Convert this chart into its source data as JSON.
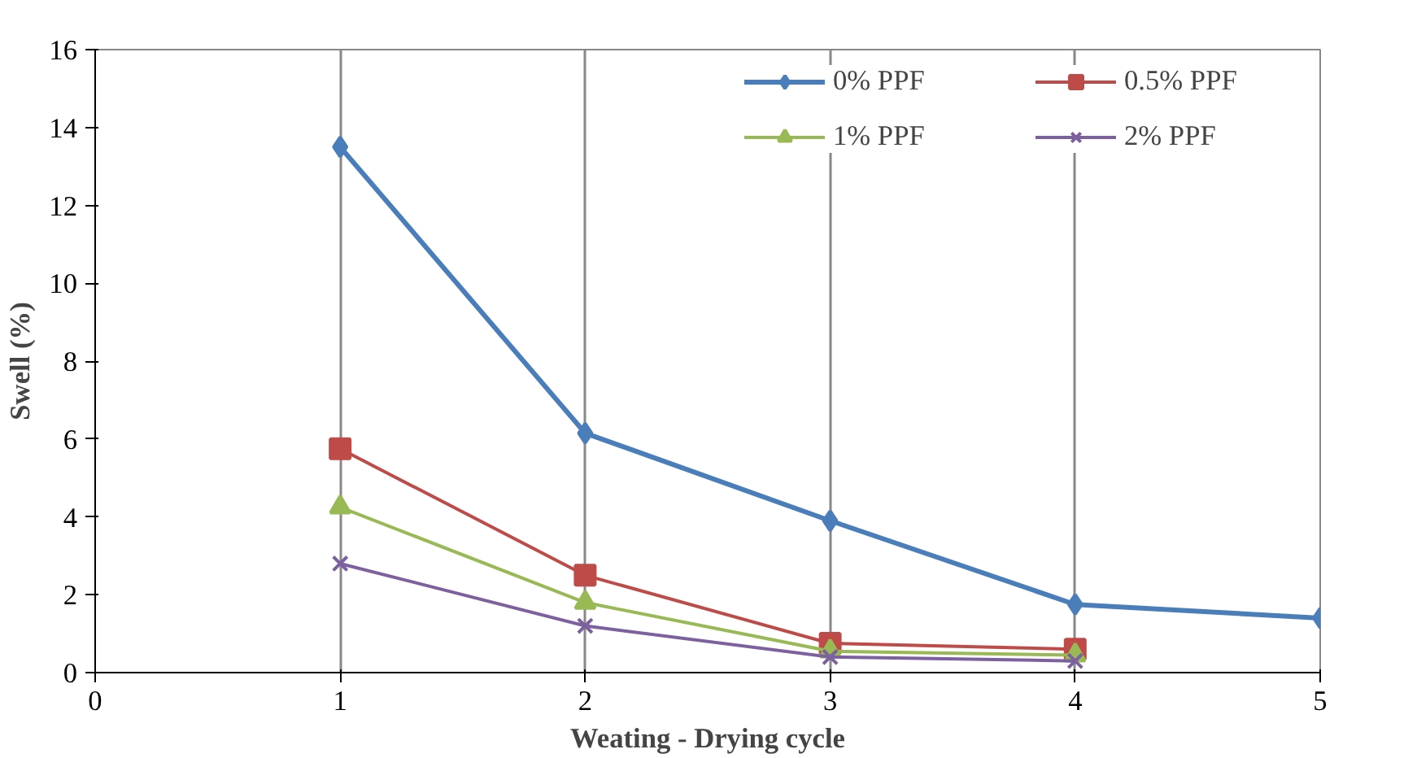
{
  "chart_data": {
    "type": "line",
    "xlabel": "Weating - Drying cycle",
    "ylabel": "Swell (%)",
    "xlim": [
      0,
      5
    ],
    "xticks": [
      0,
      1,
      2,
      3,
      4,
      5
    ],
    "ylim": [
      0,
      16
    ],
    "yticks": [
      0,
      2,
      4,
      6,
      8,
      10,
      12,
      14,
      16
    ],
    "grid": "x",
    "legend": "top right",
    "series": [
      {
        "name": "0% PPF",
        "color": "#4a7ebb",
        "marker": "diamond",
        "x": [
          1,
          2,
          3,
          4,
          5
        ],
        "values": [
          13.5,
          6.15,
          3.9,
          1.75,
          1.4
        ]
      },
      {
        "name": "0.5% PPF",
        "color": "#be4b48",
        "marker": "square",
        "x": [
          1,
          2,
          3,
          4
        ],
        "values": [
          5.75,
          2.5,
          0.75,
          0.6
        ]
      },
      {
        "name": "1% PPF",
        "color": "#98b954",
        "marker": "triangle",
        "x": [
          1,
          2,
          3,
          4
        ],
        "values": [
          4.25,
          1.8,
          0.55,
          0.45
        ]
      },
      {
        "name": "2% PPF",
        "color": "#7d60a0",
        "marker": "x",
        "x": [
          1,
          2,
          3,
          4
        ],
        "values": [
          2.8,
          1.2,
          0.4,
          0.3
        ]
      }
    ]
  }
}
